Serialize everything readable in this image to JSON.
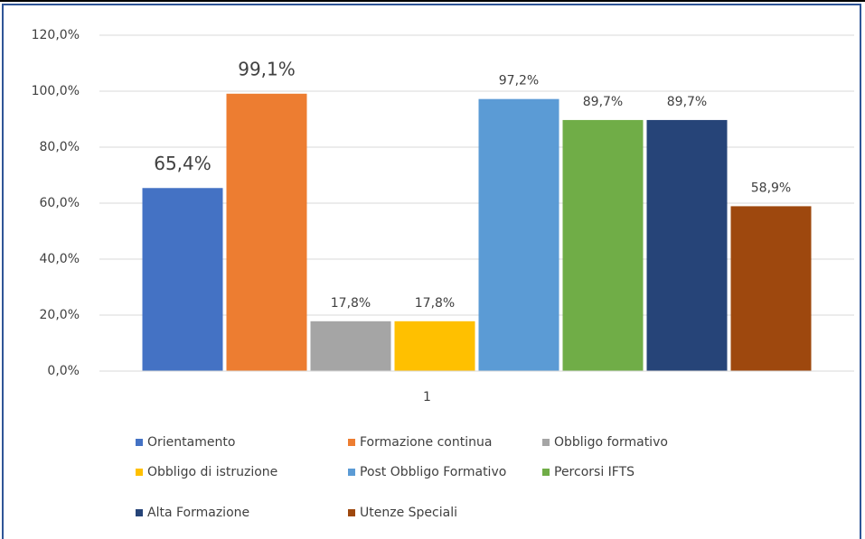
{
  "chart_data": {
    "type": "bar",
    "categories": [
      "1"
    ],
    "series": [
      {
        "name": "Orientamento",
        "color": "#4472c4",
        "values": [
          65.4
        ],
        "value_labels": [
          "65,4%"
        ]
      },
      {
        "name": "Formazione continua",
        "color": "#ed7d31",
        "values": [
          99.1
        ],
        "value_labels": [
          "99,1%"
        ]
      },
      {
        "name": "Obbligo formativo",
        "color": "#a5a5a5",
        "values": [
          17.8
        ],
        "value_labels": [
          "17,8%"
        ]
      },
      {
        "name": "Obbligo di istruzione",
        "color": "#ffc000",
        "values": [
          17.8
        ],
        "value_labels": [
          "17,8%"
        ]
      },
      {
        "name": "Post Obbligo Formativo",
        "color": "#5b9bd5",
        "values": [
          97.2
        ],
        "value_labels": [
          "97,2%"
        ]
      },
      {
        "name": "Percorsi IFTS",
        "color": "#70ad47",
        "values": [
          89.7
        ],
        "value_labels": [
          "89,7%"
        ]
      },
      {
        "name": "Alta Formazione",
        "color": "#264478",
        "values": [
          89.7
        ],
        "value_labels": [
          "89,7%"
        ]
      },
      {
        "name": "Utenze Speciali",
        "color": "#9e480e",
        "values": [
          58.9
        ],
        "value_labels": [
          "58,9%"
        ]
      }
    ],
    "ylim": [
      0,
      120
    ],
    "yticks": [
      {
        "value": 0,
        "label": "0,0%"
      },
      {
        "value": 20,
        "label": "20,0%"
      },
      {
        "value": 40,
        "label": "40,0%"
      },
      {
        "value": 60,
        "label": "60,0%"
      },
      {
        "value": 80,
        "label": "80,0%"
      },
      {
        "value": 100,
        "label": "100,0%"
      },
      {
        "value": 120,
        "label": "120,0%"
      }
    ],
    "grid": true,
    "legend": "bottom"
  }
}
